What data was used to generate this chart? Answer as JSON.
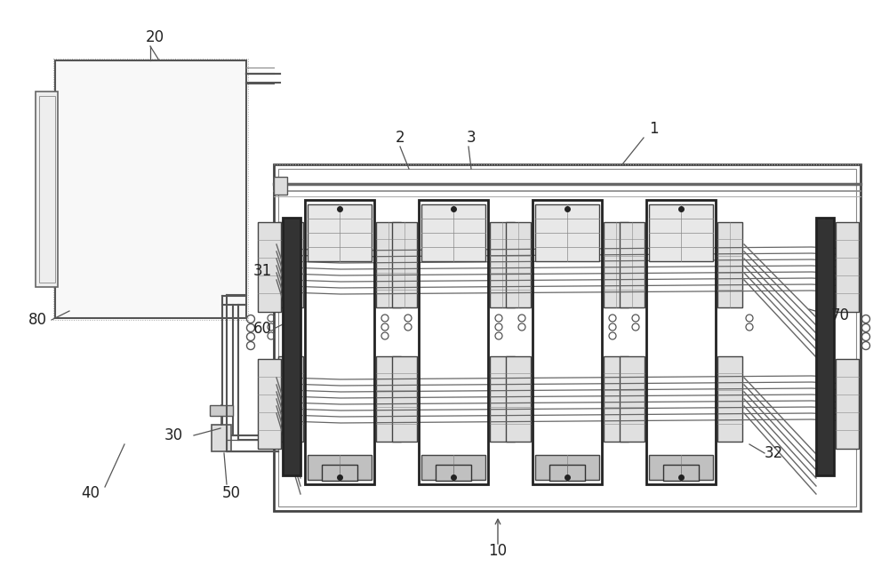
{
  "bg_color": "#ffffff",
  "lc": "#555555",
  "dc": "#222222",
  "figsize": [
    10.0,
    6.55
  ],
  "dpi": 100
}
